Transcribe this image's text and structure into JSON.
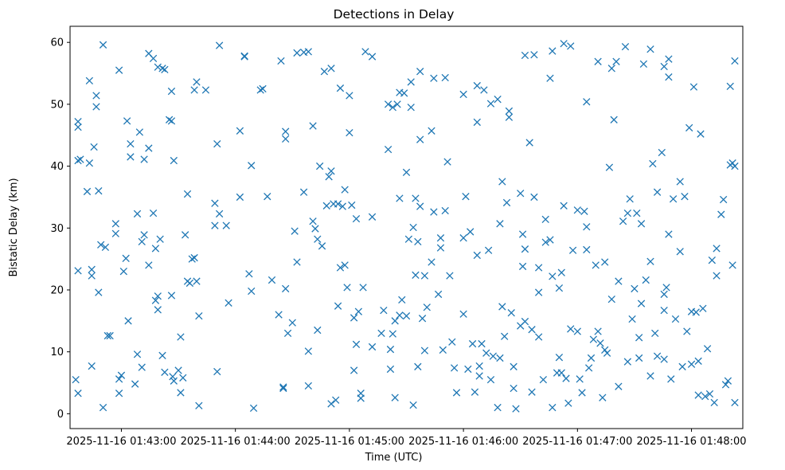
{
  "chart_data": {
    "type": "scatter",
    "title": "Detections in Delay",
    "xlabel": "Time (UTC)",
    "ylabel": "Bistatic Delay (km)",
    "marker": "x",
    "color": "#1f77b4",
    "grid": false,
    "xlim_minutes": [
      -0.45,
      5.45
    ],
    "ylim": [
      -2.4,
      62.6
    ],
    "x_ticks": [
      {
        "minute": 0,
        "label": "2025-11-16 01:43:00"
      },
      {
        "minute": 1,
        "label": "2025-11-16 01:44:00"
      },
      {
        "minute": 2,
        "label": "2025-11-16 01:45:00"
      },
      {
        "minute": 3,
        "label": "2025-11-16 01:46:00"
      },
      {
        "minute": 4,
        "label": "2025-11-16 01:47:00"
      },
      {
        "minute": 5,
        "label": "2025-11-16 01:48:00"
      }
    ],
    "y_ticks": [
      {
        "value": 0,
        "label": "0"
      },
      {
        "value": 10,
        "label": "10"
      },
      {
        "value": 20,
        "label": "20"
      },
      {
        "value": 30,
        "label": "30"
      },
      {
        "value": 40,
        "label": "40"
      },
      {
        "value": 50,
        "label": "50"
      },
      {
        "value": 60,
        "label": "60"
      }
    ],
    "time_origin": "2025-11-16 01:43:00",
    "points_time_unit": "minutes since 2025-11-16 01:43:00",
    "points": [
      [
        -0.4,
        5.5
      ],
      [
        -0.38,
        3.3
      ],
      [
        -0.38,
        47.2
      ],
      [
        -0.38,
        46.3
      ],
      [
        -0.38,
        40.9
      ],
      [
        -0.36,
        41.1
      ],
      [
        -0.38,
        23.1
      ],
      [
        -0.28,
        53.8
      ],
      [
        -0.3,
        35.9
      ],
      [
        -0.28,
        40.5
      ],
      [
        -0.26,
        22.3
      ],
      [
        -0.26,
        23.3
      ],
      [
        -0.26,
        7.7
      ],
      [
        -0.24,
        43.1
      ],
      [
        -0.22,
        49.6
      ],
      [
        -0.22,
        51.4
      ],
      [
        -0.2,
        36.0
      ],
      [
        -0.2,
        19.6
      ],
      [
        -0.18,
        27.3
      ],
      [
        -0.14,
        26.9
      ],
      [
        -0.12,
        12.6
      ],
      [
        -0.1,
        12.6
      ],
      [
        -0.05,
        30.7
      ],
      [
        -0.05,
        29.1
      ],
      [
        -0.02,
        3.3
      ],
      [
        -0.02,
        5.6
      ],
      [
        0.0,
        6.2
      ],
      [
        0.02,
        23.0
      ],
      [
        0.04,
        25.1
      ],
      [
        0.06,
        15.0
      ],
      [
        0.05,
        47.3
      ],
      [
        0.08,
        43.6
      ],
      [
        0.08,
        41.5
      ],
      [
        0.14,
        9.6
      ],
      [
        0.12,
        4.8
      ],
      [
        0.14,
        32.3
      ],
      [
        0.18,
        27.8
      ],
      [
        0.16,
        45.5
      ],
      [
        0.18,
        7.5
      ],
      [
        0.2,
        41.1
      ],
      [
        0.2,
        28.9
      ],
      [
        0.24,
        24.0
      ],
      [
        0.24,
        42.9
      ],
      [
        0.28,
        32.4
      ],
      [
        0.3,
        26.7
      ],
      [
        0.3,
        18.3
      ],
      [
        0.32,
        19.0
      ],
      [
        0.32,
        16.8
      ],
      [
        0.34,
        28.2
      ],
      [
        0.36,
        9.4
      ],
      [
        0.38,
        6.7
      ],
      [
        0.44,
        19.1
      ],
      [
        0.45,
        6.0
      ],
      [
        0.46,
        5.3
      ],
      [
        0.5,
        7.0
      ],
      [
        0.52,
        3.4
      ],
      [
        0.52,
        12.4
      ],
      [
        0.54,
        5.8
      ],
      [
        0.56,
        28.9
      ],
      [
        0.58,
        21.4
      ],
      [
        0.58,
        35.5
      ],
      [
        0.6,
        21.1
      ],
      [
        0.62,
        25.0
      ],
      [
        0.64,
        25.2
      ],
      [
        0.66,
        21.4
      ],
      [
        0.68,
        1.3
      ],
      [
        0.68,
        15.8
      ],
      [
        0.82,
        34.0
      ],
      [
        0.82,
        30.4
      ],
      [
        0.84,
        6.8
      ],
      [
        0.86,
        32.3
      ],
      [
        0.92,
        30.4
      ],
      [
        0.94,
        17.9
      ],
      [
        1.04,
        35.0
      ],
      [
        1.04,
        45.7
      ],
      [
        1.12,
        22.6
      ],
      [
        1.14,
        40.1
      ],
      [
        1.14,
        19.8
      ],
      [
        1.16,
        0.9
      ],
      [
        1.28,
        35.1
      ],
      [
        1.32,
        21.6
      ],
      [
        1.38,
        16.0
      ],
      [
        1.42,
        4.1
      ],
      [
        1.42,
        4.3
      ],
      [
        1.44,
        20.2
      ],
      [
        1.44,
        45.6
      ],
      [
        1.44,
        44.4
      ],
      [
        1.46,
        13.0
      ],
      [
        1.5,
        14.7
      ],
      [
        1.52,
        29.5
      ],
      [
        1.54,
        24.5
      ],
      [
        1.6,
        35.8
      ],
      [
        1.64,
        10.1
      ],
      [
        1.64,
        4.5
      ],
      [
        1.68,
        31.1
      ],
      [
        1.68,
        46.5
      ],
      [
        1.7,
        29.9
      ],
      [
        1.72,
        13.5
      ],
      [
        1.72,
        28.2
      ],
      [
        1.74,
        40.0
      ],
      [
        1.76,
        27.1
      ],
      [
        1.8,
        33.6
      ],
      [
        1.82,
        38.3
      ],
      [
        1.84,
        39.2
      ],
      [
        1.84,
        1.6
      ],
      [
        1.86,
        33.9
      ],
      [
        1.88,
        2.2
      ],
      [
        1.9,
        33.9
      ],
      [
        1.9,
        17.4
      ],
      [
        1.92,
        23.6
      ],
      [
        1.92,
        52.6
      ],
      [
        1.94,
        33.5
      ],
      [
        1.96,
        24.0
      ],
      [
        1.96,
        36.2
      ],
      [
        2.0,
        45.4
      ],
      [
        2.02,
        33.7
      ],
      [
        2.04,
        15.5
      ],
      [
        2.06,
        31.5
      ],
      [
        2.06,
        11.2
      ],
      [
        2.08,
        16.5
      ],
      [
        2.1,
        2.5
      ],
      [
        2.1,
        3.3
      ],
      [
        2.2,
        31.8
      ],
      [
        2.3,
        16.7
      ],
      [
        2.34,
        42.7
      ],
      [
        2.36,
        10.4
      ],
      [
        2.38,
        12.9
      ],
      [
        2.38,
        49.5
      ],
      [
        2.4,
        2.6
      ],
      [
        2.4,
        15.0
      ],
      [
        2.42,
        50.0
      ],
      [
        2.44,
        34.8
      ],
      [
        2.46,
        18.4
      ],
      [
        2.5,
        39.0
      ],
      [
        2.5,
        15.8
      ],
      [
        2.52,
        28.2
      ],
      [
        2.54,
        49.5
      ],
      [
        2.56,
        1.4
      ],
      [
        2.56,
        30.1
      ],
      [
        2.58,
        34.8
      ],
      [
        2.6,
        7.6
      ],
      [
        2.6,
        27.8
      ],
      [
        2.62,
        44.3
      ],
      [
        2.62,
        33.5
      ],
      [
        2.64,
        15.4
      ],
      [
        2.66,
        10.2
      ],
      [
        2.68,
        17.2
      ],
      [
        2.72,
        45.7
      ],
      [
        2.74,
        32.6
      ],
      [
        2.78,
        19.3
      ],
      [
        2.8,
        28.4
      ],
      [
        2.82,
        10.3
      ],
      [
        2.84,
        32.8
      ],
      [
        2.86,
        40.7
      ],
      [
        2.9,
        11.6
      ],
      [
        2.92,
        7.4
      ],
      [
        2.94,
        3.4
      ],
      [
        3.0,
        16.1
      ],
      [
        3.02,
        35.1
      ],
      [
        3.04,
        7.2
      ],
      [
        3.06,
        29.4
      ],
      [
        3.08,
        11.3
      ],
      [
        3.1,
        3.5
      ],
      [
        3.12,
        47.1
      ],
      [
        3.14,
        7.7
      ],
      [
        3.16,
        11.3
      ],
      [
        3.2,
        9.8
      ],
      [
        3.22,
        26.4
      ],
      [
        3.26,
        9.3
      ],
      [
        3.3,
        1.0
      ],
      [
        3.32,
        9.0
      ],
      [
        3.34,
        37.5
      ],
      [
        3.36,
        12.5
      ],
      [
        3.38,
        34.1
      ],
      [
        3.4,
        47.9
      ],
      [
        3.42,
        16.3
      ],
      [
        3.44,
        7.6
      ],
      [
        3.46,
        0.8
      ],
      [
        3.5,
        14.2
      ],
      [
        3.5,
        35.6
      ],
      [
        3.52,
        23.8
      ],
      [
        3.54,
        26.6
      ],
      [
        3.58,
        43.8
      ],
      [
        3.6,
        3.5
      ],
      [
        3.62,
        35.0
      ],
      [
        3.66,
        12.4
      ],
      [
        3.66,
        23.6
      ],
      [
        3.7,
        5.5
      ],
      [
        3.72,
        27.7
      ],
      [
        3.76,
        28.1
      ],
      [
        3.78,
        1.0
      ],
      [
        3.82,
        6.6
      ],
      [
        3.86,
        6.6
      ],
      [
        3.88,
        33.6
      ],
      [
        3.9,
        5.7
      ],
      [
        3.92,
        1.7
      ],
      [
        3.96,
        26.4
      ],
      [
        4.0,
        13.3
      ],
      [
        4.02,
        5.6
      ],
      [
        4.04,
        3.4
      ],
      [
        4.06,
        32.7
      ],
      [
        4.08,
        26.5
      ],
      [
        4.1,
        7.4
      ],
      [
        4.14,
        12.0
      ],
      [
        4.16,
        24.0
      ],
      [
        4.2,
        11.4
      ],
      [
        4.22,
        2.6
      ],
      [
        4.24,
        10.3
      ],
      [
        4.28,
        39.8
      ],
      [
        4.32,
        47.5
      ],
      [
        4.36,
        4.4
      ],
      [
        4.4,
        31.1
      ],
      [
        4.44,
        32.4
      ],
      [
        4.46,
        34.7
      ],
      [
        4.5,
        20.2
      ],
      [
        4.52,
        32.4
      ],
      [
        4.54,
        9.0
      ],
      [
        4.56,
        30.7
      ],
      [
        4.6,
        21.6
      ],
      [
        4.64,
        24.6
      ],
      [
        4.66,
        40.4
      ],
      [
        4.7,
        35.8
      ],
      [
        4.74,
        42.2
      ],
      [
        4.76,
        16.7
      ],
      [
        4.8,
        29.0
      ],
      [
        4.84,
        34.7
      ],
      [
        4.9,
        37.5
      ],
      [
        4.94,
        35.1
      ],
      [
        4.98,
        46.2
      ],
      [
        5.02,
        52.8
      ],
      [
        5.06,
        3.0
      ],
      [
        5.08,
        45.2
      ],
      [
        5.12,
        2.8
      ],
      [
        5.14,
        10.5
      ],
      [
        5.18,
        24.8
      ],
      [
        5.22,
        22.3
      ],
      [
        5.26,
        32.2
      ],
      [
        5.28,
        34.6
      ],
      [
        5.3,
        4.7
      ],
      [
        5.32,
        5.3
      ],
      [
        5.34,
        40.2
      ],
      [
        5.36,
        40.5
      ],
      [
        5.36,
        24.0
      ],
      [
        5.38,
        1.8
      ],
      [
        5.38,
        40.0
      ],
      [
        5.38,
        57.0
      ],
      [
        -0.16,
        1.0
      ],
      [
        -0.16,
        59.6
      ],
      [
        -0.02,
        55.5
      ],
      [
        0.24,
        58.2
      ],
      [
        0.28,
        57.4
      ],
      [
        0.32,
        56.0
      ],
      [
        0.36,
        55.8
      ],
      [
        0.38,
        55.6
      ],
      [
        0.42,
        47.5
      ],
      [
        0.44,
        47.3
      ],
      [
        0.44,
        52.1
      ],
      [
        0.46,
        40.9
      ],
      [
        0.64,
        52.3
      ],
      [
        0.66,
        53.6
      ],
      [
        0.74,
        52.3
      ],
      [
        0.86,
        59.5
      ],
      [
        0.84,
        43.6
      ],
      [
        1.08,
        57.8
      ],
      [
        1.08,
        57.7
      ],
      [
        1.22,
        52.3
      ],
      [
        1.24,
        52.5
      ],
      [
        1.4,
        57.0
      ],
      [
        1.54,
        58.3
      ],
      [
        1.6,
        58.4
      ],
      [
        1.64,
        58.5
      ],
      [
        1.78,
        55.3
      ],
      [
        1.84,
        55.8
      ],
      [
        2.0,
        51.4
      ],
      [
        2.14,
        58.5
      ],
      [
        2.2,
        57.7
      ],
      [
        2.34,
        50.0
      ],
      [
        2.44,
        51.9
      ],
      [
        2.48,
        51.8
      ],
      [
        2.54,
        53.6
      ],
      [
        2.62,
        55.3
      ],
      [
        2.74,
        54.2
      ],
      [
        2.84,
        54.3
      ],
      [
        3.0,
        51.6
      ],
      [
        3.12,
        53.0
      ],
      [
        3.18,
        52.3
      ],
      [
        3.24,
        50.1
      ],
      [
        3.3,
        50.8
      ],
      [
        3.4,
        48.9
      ],
      [
        3.54,
        57.9
      ],
      [
        3.62,
        58.0
      ],
      [
        3.76,
        54.2
      ],
      [
        3.78,
        58.6
      ],
      [
        3.88,
        59.8
      ],
      [
        3.94,
        59.4
      ],
      [
        4.08,
        50.4
      ],
      [
        4.18,
        56.9
      ],
      [
        4.3,
        55.8
      ],
      [
        4.34,
        56.9
      ],
      [
        4.42,
        59.3
      ],
      [
        4.58,
        56.5
      ],
      [
        4.64,
        58.9
      ],
      [
        4.76,
        56.1
      ],
      [
        4.8,
        57.3
      ],
      [
        4.8,
        54.4
      ],
      [
        5.34,
        52.9
      ],
      [
        3.0,
        28.4
      ],
      [
        3.12,
        25.6
      ],
      [
        3.32,
        30.7
      ],
      [
        3.52,
        29.0
      ],
      [
        3.66,
        19.6
      ],
      [
        3.84,
        20.3
      ],
      [
        3.86,
        22.8
      ],
      [
        4.08,
        30.2
      ],
      [
        4.24,
        24.5
      ],
      [
        4.3,
        18.5
      ],
      [
        4.56,
        17.8
      ],
      [
        4.68,
        13.0
      ],
      [
        4.76,
        19.3
      ],
      [
        4.78,
        20.4
      ],
      [
        4.86,
        15.3
      ],
      [
        4.9,
        26.2
      ],
      [
        4.96,
        13.3
      ],
      [
        5.0,
        16.5
      ],
      [
        5.04,
        16.4
      ],
      [
        5.1,
        17.0
      ],
      [
        5.22,
        26.7
      ],
      [
        1.98,
        20.4
      ],
      [
        2.04,
        7.0
      ],
      [
        2.12,
        20.4
      ],
      [
        2.2,
        10.8
      ],
      [
        2.28,
        13.0
      ],
      [
        2.36,
        7.2
      ],
      [
        2.44,
        15.9
      ],
      [
        2.58,
        22.4
      ],
      [
        2.66,
        22.3
      ],
      [
        2.72,
        24.5
      ],
      [
        2.8,
        26.8
      ],
      [
        2.88,
        22.3
      ],
      [
        3.14,
        6.1
      ],
      [
        3.24,
        5.5
      ],
      [
        3.34,
        17.3
      ],
      [
        3.44,
        4.1
      ],
      [
        3.54,
        14.9
      ],
      [
        3.6,
        13.6
      ],
      [
        3.72,
        31.4
      ],
      [
        3.78,
        22.2
      ],
      [
        3.84,
        9.1
      ],
      [
        3.94,
        13.7
      ],
      [
        4.0,
        32.9
      ],
      [
        4.12,
        9.0
      ],
      [
        4.18,
        13.3
      ],
      [
        4.26,
        9.8
      ],
      [
        4.36,
        21.4
      ],
      [
        4.44,
        8.4
      ],
      [
        4.48,
        15.3
      ],
      [
        4.54,
        12.3
      ],
      [
        4.64,
        6.1
      ],
      [
        4.7,
        9.3
      ],
      [
        4.76,
        8.8
      ],
      [
        4.82,
        5.6
      ],
      [
        4.92,
        7.6
      ],
      [
        5.0,
        8.0
      ],
      [
        5.06,
        8.5
      ],
      [
        5.16,
        3.2
      ],
      [
        5.2,
        1.8
      ]
    ]
  }
}
